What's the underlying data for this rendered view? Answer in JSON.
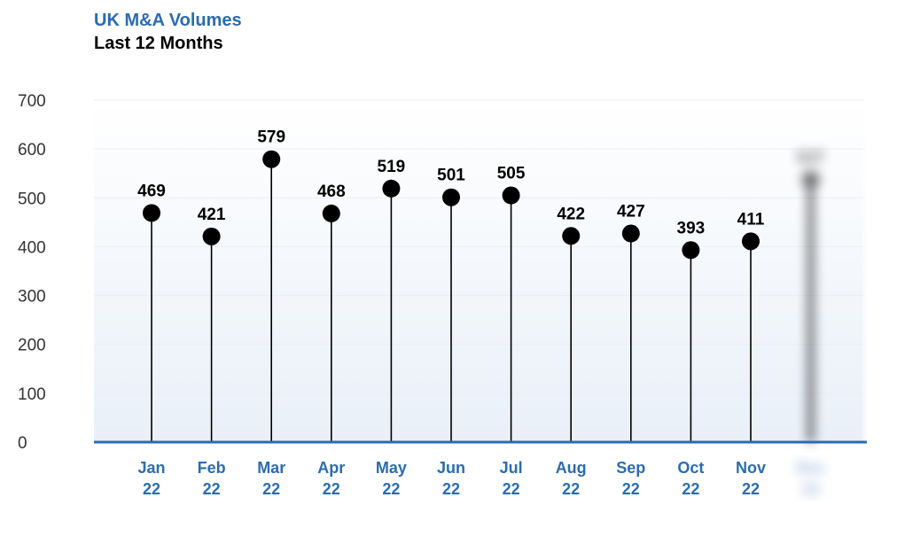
{
  "title": "UK M&A Volumes",
  "subtitle": "Last 12 Months",
  "colors": {
    "title": "#2b6cb0",
    "axis_line": "#2b6cb0",
    "x_tick_label": "#2b6cb0",
    "y_tick_label": "#333333",
    "marker": "#000000",
    "stem": "#000000",
    "gridline": "#e8eef5",
    "plot_background_top": "#ffffff",
    "plot_background_bottom": "#e9f0f8"
  },
  "chart_data": {
    "type": "lollipop",
    "title": "UK M&A Volumes",
    "subtitle": "Last 12 Months",
    "xlabel": "",
    "ylabel": "",
    "ylim": [
      0,
      700
    ],
    "y_ticks": [
      "0",
      "100",
      "200",
      "300",
      "400",
      "500",
      "600",
      "700"
    ],
    "grid": true,
    "categories": [
      [
        "Jan",
        "22"
      ],
      [
        "Feb",
        "22"
      ],
      [
        "Mar",
        "22"
      ],
      [
        "Apr",
        "22"
      ],
      [
        "May",
        "22"
      ],
      [
        "Jun",
        "22"
      ],
      [
        "Jul",
        "22"
      ],
      [
        "Aug",
        "22"
      ],
      [
        "Sep",
        "22"
      ],
      [
        "Oct",
        "22"
      ],
      [
        "Nov",
        "22"
      ],
      [
        "Dec",
        "22"
      ]
    ],
    "values": [
      469,
      421,
      579,
      468,
      519,
      501,
      505,
      422,
      427,
      393,
      411,
      537
    ],
    "data_labels": [
      "469",
      "421",
      "579",
      "468",
      "519",
      "501",
      "505",
      "422",
      "427",
      "393",
      "411",
      "537"
    ],
    "blurred_last_point": true
  }
}
